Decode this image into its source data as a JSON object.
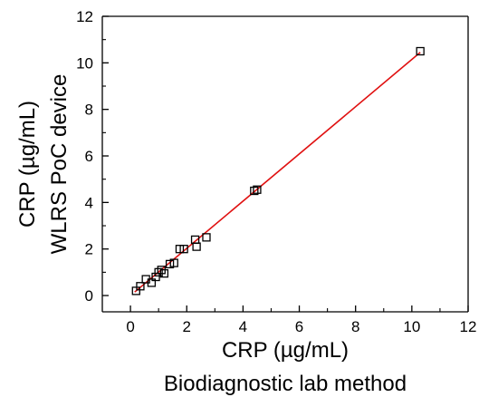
{
  "chart_data": {
    "type": "scatter",
    "ylabel_lines": [
      "CRP (µg/mL)",
      "WLRS PoC device"
    ],
    "xlabel_lines": [
      "CRP (µg/mL)",
      "Biodiagnostic lab method"
    ],
    "xlim": [
      -1,
      12
    ],
    "ylim": [
      -0.7,
      12
    ],
    "x_ticks": [
      "0",
      "2",
      "4",
      "6",
      "8",
      "10",
      "12"
    ],
    "y_ticks": [
      "0",
      "2",
      "4",
      "6",
      "8",
      "10",
      "12"
    ],
    "grid": false,
    "legend": false,
    "colors": {
      "points": "#000000",
      "fit_line": "#e01010",
      "axes": "#000000"
    },
    "points": [
      {
        "x": 0.2,
        "y": 0.2
      },
      {
        "x": 0.35,
        "y": 0.4
      },
      {
        "x": 0.55,
        "y": 0.7
      },
      {
        "x": 0.75,
        "y": 0.55
      },
      {
        "x": 0.9,
        "y": 0.8
      },
      {
        "x": 1.0,
        "y": 1.0
      },
      {
        "x": 1.1,
        "y": 1.1
      },
      {
        "x": 1.2,
        "y": 0.95
      },
      {
        "x": 1.4,
        "y": 1.35
      },
      {
        "x": 1.55,
        "y": 1.4
      },
      {
        "x": 1.75,
        "y": 2.0
      },
      {
        "x": 1.9,
        "y": 2.0
      },
      {
        "x": 2.3,
        "y": 2.4
      },
      {
        "x": 2.35,
        "y": 2.1
      },
      {
        "x": 2.7,
        "y": 2.5
      },
      {
        "x": 4.4,
        "y": 4.5
      },
      {
        "x": 4.5,
        "y": 4.55
      },
      {
        "x": 10.3,
        "y": 10.5
      }
    ],
    "fit_line": {
      "x": [
        0.15,
        10.3
      ],
      "y": [
        0.15,
        10.45
      ]
    }
  }
}
